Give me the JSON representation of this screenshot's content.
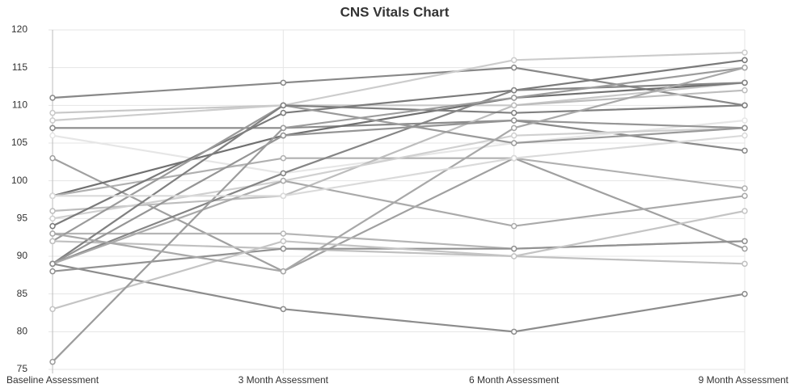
{
  "chart_data": {
    "type": "line",
    "title": "CNS Vitals Chart",
    "categories": [
      "Baseline Assessment",
      "3 Month Assessment",
      "6 Month Assessment",
      "9 Month Assessment"
    ],
    "ylim": [
      75,
      120
    ],
    "yticks": [
      75,
      80,
      85,
      90,
      95,
      100,
      105,
      110,
      115,
      120
    ],
    "grid": true,
    "series": [
      {
        "color": "#888888",
        "values": [
          111,
          113,
          115,
          110
        ]
      },
      {
        "color": "#c8c8c8",
        "values": [
          109,
          110,
          110,
          113
        ]
      },
      {
        "color": "#cccccc",
        "values": [
          108,
          110,
          116,
          117
        ]
      },
      {
        "color": "#8a8a8a",
        "values": [
          107,
          107,
          108,
          104
        ]
      },
      {
        "color": "#e6e6e6",
        "values": [
          106,
          101,
          105,
          108
        ]
      },
      {
        "color": "#a0a0a0",
        "values": [
          103,
          88,
          103,
          91
        ]
      },
      {
        "color": "#707070",
        "values": [
          98,
          106,
          111,
          113
        ]
      },
      {
        "color": "#b0b0b0",
        "values": [
          98,
          103,
          103,
          99
        ]
      },
      {
        "color": "#bdbdbd",
        "values": [
          96,
          98,
          110,
          112
        ]
      },
      {
        "color": "#d0d0d0",
        "values": [
          95,
          100,
          106,
          107
        ]
      },
      {
        "color": "#7a7a7a",
        "values": [
          94,
          109,
          112,
          116
        ]
      },
      {
        "color": "#b5b5b5",
        "values": [
          93,
          93,
          91,
          92
        ]
      },
      {
        "color": "#9a9a9a",
        "values": [
          92,
          110,
          105,
          107
        ]
      },
      {
        "color": "#c0c0c0",
        "values": [
          92,
          91,
          90,
          89
        ]
      },
      {
        "color": "#808080",
        "values": [
          89,
          110,
          109,
          110
        ]
      },
      {
        "color": "#858585",
        "values": [
          89,
          101,
          112,
          113
        ]
      },
      {
        "color": "#959595",
        "values": [
          89,
          106,
          108,
          107
        ]
      },
      {
        "color": "#aaaaaa",
        "values": [
          89,
          100,
          94,
          98
        ]
      },
      {
        "color": "#8c8c8c",
        "values": [
          89,
          83,
          80,
          85
        ]
      },
      {
        "color": "#929292",
        "values": [
          88,
          91,
          91,
          92
        ]
      },
      {
        "color": "#c4c4c4",
        "values": [
          83,
          92,
          90,
          96
        ]
      },
      {
        "color": "#9c9c9c",
        "values": [
          76,
          107,
          111,
          115
        ]
      },
      {
        "color": "#a8a8a8",
        "values": [
          93,
          88,
          107,
          115
        ]
      },
      {
        "color": "#dadada",
        "values": [
          98,
          98,
          103,
          106
        ]
      }
    ]
  }
}
